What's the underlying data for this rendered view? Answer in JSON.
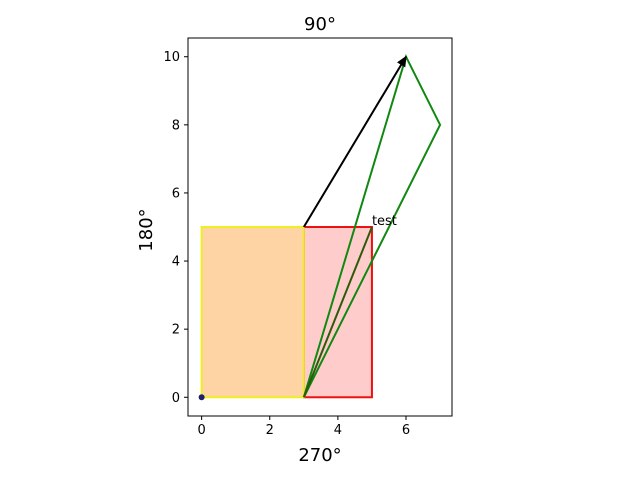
{
  "chart_data": {
    "type": "scatter",
    "title": "90°",
    "xlabel": "270°",
    "ylabel": "180°",
    "xlim": [
      -0.4,
      7.35
    ],
    "ylim": [
      -0.55,
      10.55
    ],
    "xticks": [
      0,
      2,
      4,
      6
    ],
    "yticks": [
      0,
      2,
      4,
      6,
      8,
      10
    ],
    "grid": false,
    "legend": "none",
    "shapes": [
      {
        "kind": "rect",
        "x0": 3,
        "y0": 0,
        "x1": 5,
        "y1": 5,
        "fill": "#ffcccc",
        "stroke": "#ee1111"
      },
      {
        "kind": "rect",
        "x0": 0,
        "y0": 0,
        "x1": 3,
        "y1": 5,
        "fill": "#ffd4a4",
        "stroke": "#eeee22"
      },
      {
        "kind": "polygon",
        "points": [
          [
            3,
            0
          ],
          [
            6,
            10
          ],
          [
            7,
            8
          ],
          [
            3,
            0
          ]
        ],
        "stroke": "#118811"
      },
      {
        "kind": "line",
        "points": [
          [
            3,
            0
          ],
          [
            5,
            5
          ]
        ],
        "stroke": "#2d5a0b"
      }
    ],
    "arrow": {
      "from": [
        3,
        5
      ],
      "to": [
        6,
        10
      ],
      "color": "#000000"
    },
    "point": {
      "x": 0,
      "y": 0,
      "color": "#1f1f6a"
    },
    "annotations": [
      {
        "text": "test",
        "x": 5,
        "y": 5
      }
    ]
  }
}
